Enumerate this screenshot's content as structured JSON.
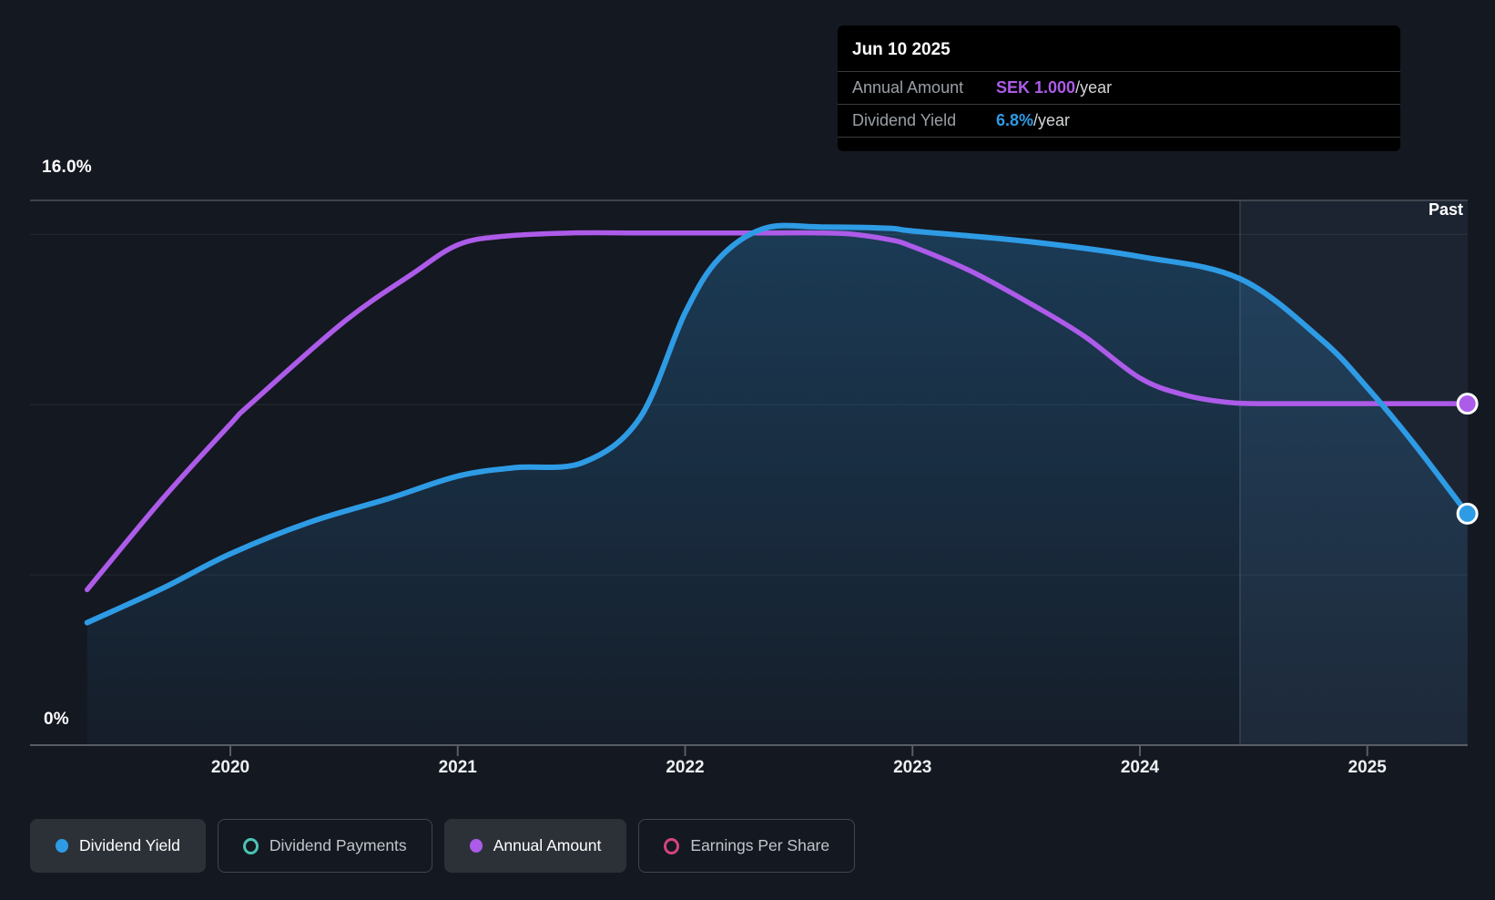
{
  "tooltip": {
    "date": "Jun 10 2025",
    "rows": [
      {
        "label": "Annual Amount",
        "value": "SEK 1.000",
        "suffix": "/year",
        "color": "#ad5be9"
      },
      {
        "label": "Dividend Yield",
        "value": "6.8%",
        "suffix": "/year",
        "color": "#2e9be5"
      }
    ]
  },
  "y_axis": {
    "top_label": "16.0%",
    "bottom_label": "0%"
  },
  "x_axis": {
    "labels": [
      "2020",
      "2021",
      "2022",
      "2023",
      "2024",
      "2025"
    ]
  },
  "past_label": "Past",
  "legend": [
    {
      "label": "Dividend Yield",
      "color": "#2e9be5",
      "style": "filled",
      "active": true
    },
    {
      "label": "Dividend Payments",
      "color": "#4cc4b4",
      "style": "ring",
      "active": false
    },
    {
      "label": "Annual Amount",
      "color": "#ad5be9",
      "style": "filled",
      "active": true
    },
    {
      "label": "Earnings Per Share",
      "color": "#d6437e",
      "style": "ring",
      "active": false
    }
  ],
  "colors": {
    "background": "#141821",
    "dividend_yield": "#2e9be5",
    "annual_amount": "#ad5be9",
    "dividend_payments": "#4cc4b4",
    "earnings_per_share": "#d6437e",
    "grid_faint": "rgba(255,255,255,0.07)",
    "grid_strong": "#4b525a",
    "past_region": "rgba(125,170,215,0.09)",
    "area_fill_top": "rgba(43,132,196,0.32)",
    "area_fill_bottom": "rgba(43,132,196,0.05)"
  },
  "chart_data": {
    "type": "line",
    "x_ticks": [
      2020,
      2021,
      2022,
      2023,
      2024,
      2025
    ],
    "x_range": [
      2019.37,
      2025.44
    ],
    "ylim_pct": [
      0,
      16.27
    ],
    "y_gridlines_pct": [
      5,
      10,
      15
    ],
    "y_top_border_pct": 16.0,
    "past_region_start": 2024.44,
    "series": [
      {
        "name": "Dividend Yield",
        "unit": "%",
        "color": "#2e9be5",
        "area_fill": true,
        "points": [
          [
            2019.37,
            3.6
          ],
          [
            2019.7,
            4.6
          ],
          [
            2020.0,
            5.62
          ],
          [
            2020.35,
            6.55
          ],
          [
            2020.7,
            7.25
          ],
          [
            2021.0,
            7.9
          ],
          [
            2021.25,
            8.15
          ],
          [
            2021.55,
            8.3
          ],
          [
            2021.8,
            9.6
          ],
          [
            2022.0,
            12.7
          ],
          [
            2022.15,
            14.3
          ],
          [
            2022.35,
            15.18
          ],
          [
            2022.6,
            15.22
          ],
          [
            2022.9,
            15.18
          ],
          [
            2023.0,
            15.1
          ],
          [
            2023.5,
            14.8
          ],
          [
            2024.0,
            14.35
          ],
          [
            2024.44,
            13.7
          ],
          [
            2024.8,
            11.9
          ],
          [
            2025.0,
            10.5
          ],
          [
            2025.2,
            8.9
          ],
          [
            2025.44,
            6.8
          ]
        ],
        "end_value_label": "6.8%/year"
      },
      {
        "name": "Annual Amount",
        "unit": "SEK",
        "color": "#ad5be9",
        "area_fill": false,
        "sek_to_pct_scale": 10.03,
        "points": [
          [
            2019.37,
            0.455
          ],
          [
            2019.7,
            0.72
          ],
          [
            2020.0,
            0.94
          ],
          [
            2020.09,
            1.0
          ],
          [
            2020.5,
            1.24
          ],
          [
            2020.8,
            1.38
          ],
          [
            2021.0,
            1.465
          ],
          [
            2021.2,
            1.49
          ],
          [
            2021.5,
            1.5
          ],
          [
            2021.8,
            1.5
          ],
          [
            2022.1,
            1.5
          ],
          [
            2022.4,
            1.5
          ],
          [
            2022.7,
            1.498
          ],
          [
            2022.9,
            1.48
          ],
          [
            2023.0,
            1.46
          ],
          [
            2023.25,
            1.39
          ],
          [
            2023.5,
            1.3
          ],
          [
            2023.75,
            1.2
          ],
          [
            2024.0,
            1.075
          ],
          [
            2024.2,
            1.025
          ],
          [
            2024.4,
            1.003
          ],
          [
            2024.6,
            1.0
          ],
          [
            2025.0,
            1.0
          ],
          [
            2025.44,
            1.0
          ]
        ],
        "end_value_label": "SEK 1.000/year"
      }
    ]
  }
}
